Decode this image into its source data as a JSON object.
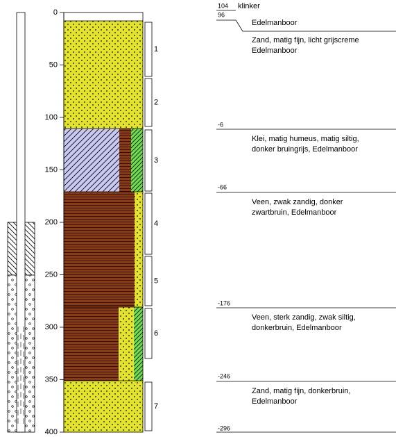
{
  "depth_axis": {
    "lim": [
      0,
      400
    ],
    "ticks": [
      0,
      50,
      100,
      150,
      200,
      250,
      300,
      350,
      400
    ]
  },
  "samples": [
    "1",
    "2",
    "3",
    "4",
    "5",
    "6",
    "7"
  ],
  "layers": [
    {
      "level": "104",
      "text": [
        "klinker"
      ]
    },
    {
      "level": "96",
      "text": [
        "Edelmanboor"
      ]
    },
    {
      "level": null,
      "text": [
        "Zand, matig fijn, licht grijscreme",
        "Edelmanboor"
      ]
    },
    {
      "level": "-6",
      "text": [
        "Klei, matig humeus, matig siltig,",
        "donker bruingrijs, Edelmanboor"
      ]
    },
    {
      "level": "-66",
      "text": [
        "Veen, zwak zandig, donker",
        "zwartbruin, Edelmanboor"
      ]
    },
    {
      "level": "-176",
      "text": [
        "Veen, sterk zandig, zwak siltig,",
        "donkerbruin, Edelmanboor"
      ]
    },
    {
      "level": "-246",
      "text": [
        "Zand, matig fijn, donkerbruin,",
        "Edelmanboor"
      ]
    },
    {
      "level": "-296",
      "text": []
    }
  ]
}
